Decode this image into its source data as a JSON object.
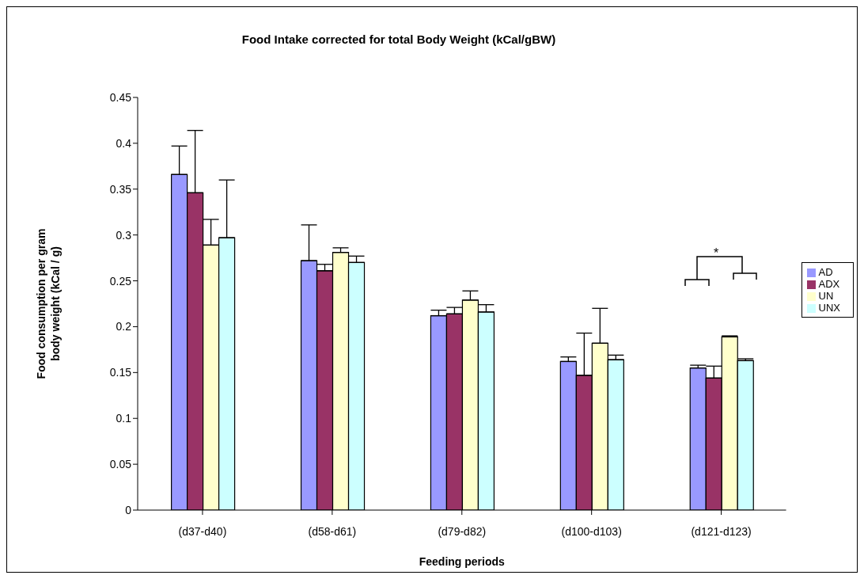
{
  "chart_data": {
    "type": "bar",
    "title": "Food Intake corrected for total Body Weight (kCal/gBW)",
    "xlabel": "Feeding periods",
    "ylabel": "Food consumption per gram body weight (kCal / g)",
    "categories": [
      "(d37-d40)",
      "(d58-d61)",
      "(d79-d82)",
      "(d100-d103)",
      "(d121-d123)"
    ],
    "series": [
      {
        "name": "AD",
        "color": "#9999ff",
        "values": [
          0.366,
          0.272,
          0.212,
          0.162,
          0.155
        ],
        "errors": [
          [
            0.366,
            0.397
          ],
          [
            0.272,
            0.311
          ],
          [
            0.212,
            0.218
          ],
          [
            0.162,
            0.167
          ],
          [
            0.155,
            0.158
          ]
        ]
      },
      {
        "name": "ADX",
        "color": "#993366",
        "values": [
          0.346,
          0.261,
          0.214,
          0.147,
          0.144
        ],
        "errors": [
          [
            0.346,
            0.414
          ],
          [
            0.261,
            0.268
          ],
          [
            0.214,
            0.221
          ],
          [
            0.147,
            0.193
          ],
          [
            0.144,
            0.157
          ]
        ]
      },
      {
        "name": "UN",
        "color": "#ffffcc",
        "values": [
          0.289,
          0.281,
          0.229,
          0.182,
          0.189
        ],
        "errors": [
          [
            0.289,
            0.317
          ],
          [
            0.281,
            0.286
          ],
          [
            0.229,
            0.239
          ],
          [
            0.182,
            0.22
          ],
          [
            0.189,
            0.19
          ]
        ]
      },
      {
        "name": "UNX",
        "color": "#ccffff",
        "values": [
          0.297,
          0.27,
          0.216,
          0.164,
          0.163
        ],
        "errors": [
          [
            0.297,
            0.36
          ],
          [
            0.27,
            0.277
          ],
          [
            0.216,
            0.224
          ],
          [
            0.164,
            0.169
          ],
          [
            0.163,
            0.165
          ]
        ]
      }
    ],
    "ylim": [
      0,
      0.45
    ],
    "yticks": [
      0,
      0.05,
      0.1,
      0.15,
      0.2,
      0.25,
      0.3,
      0.35,
      0.4,
      0.45
    ],
    "grid": false,
    "legend": "right",
    "annotations": [
      "*"
    ]
  }
}
